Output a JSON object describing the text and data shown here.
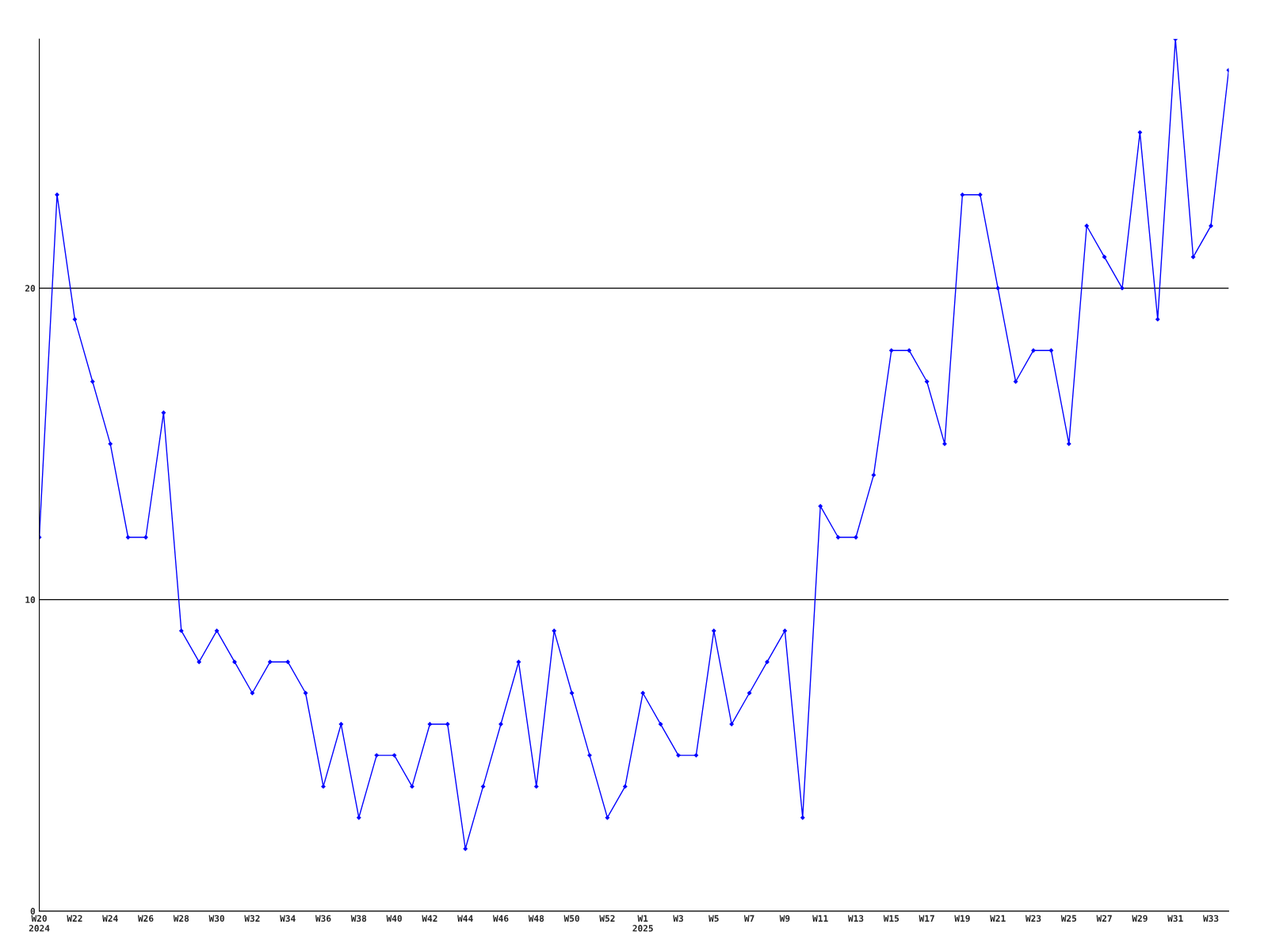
{
  "chart_data": {
    "type": "line",
    "categories": [
      "W20\n2024",
      null,
      "W22",
      null,
      "W24",
      null,
      "W26",
      null,
      "W28",
      null,
      "W30",
      null,
      "W32",
      null,
      "W34",
      null,
      "W36",
      null,
      "W38",
      null,
      "W40",
      null,
      "W42",
      null,
      "W44",
      null,
      "W46",
      null,
      "W48",
      null,
      "W50",
      null,
      "W52",
      null,
      "W1\n2025",
      null,
      "W3",
      null,
      "W5",
      null,
      "W7",
      null,
      "W9",
      null,
      "W11",
      null,
      "W13",
      null,
      "W15",
      null,
      "W17",
      null,
      "W19",
      null,
      "W21",
      null,
      "W23",
      null,
      "W25",
      null,
      "W27",
      null,
      "W29",
      null,
      "W31",
      null,
      "W33",
      null
    ],
    "series": [
      {
        "color": "#0000ff",
        "values": [
          12,
          23,
          19,
          17,
          15,
          12,
          12,
          16,
          9,
          8,
          9,
          8,
          7,
          8,
          8,
          7,
          4,
          6,
          3,
          5,
          5,
          4,
          6,
          6,
          2,
          4,
          6,
          8,
          4,
          9,
          7,
          5,
          3,
          4,
          7,
          6,
          5,
          5,
          9,
          6,
          7,
          8,
          9,
          3,
          13,
          12,
          12,
          14,
          18,
          18,
          17,
          15,
          23,
          23,
          20,
          17,
          18,
          18,
          15,
          22,
          21,
          20,
          25,
          19,
          28,
          21,
          22,
          27
        ]
      }
    ],
    "ylim": [
      0,
      28
    ],
    "yticks": [
      0,
      10,
      20
    ],
    "grid": "y",
    "marker": "diamond",
    "line_style": "solid"
  }
}
